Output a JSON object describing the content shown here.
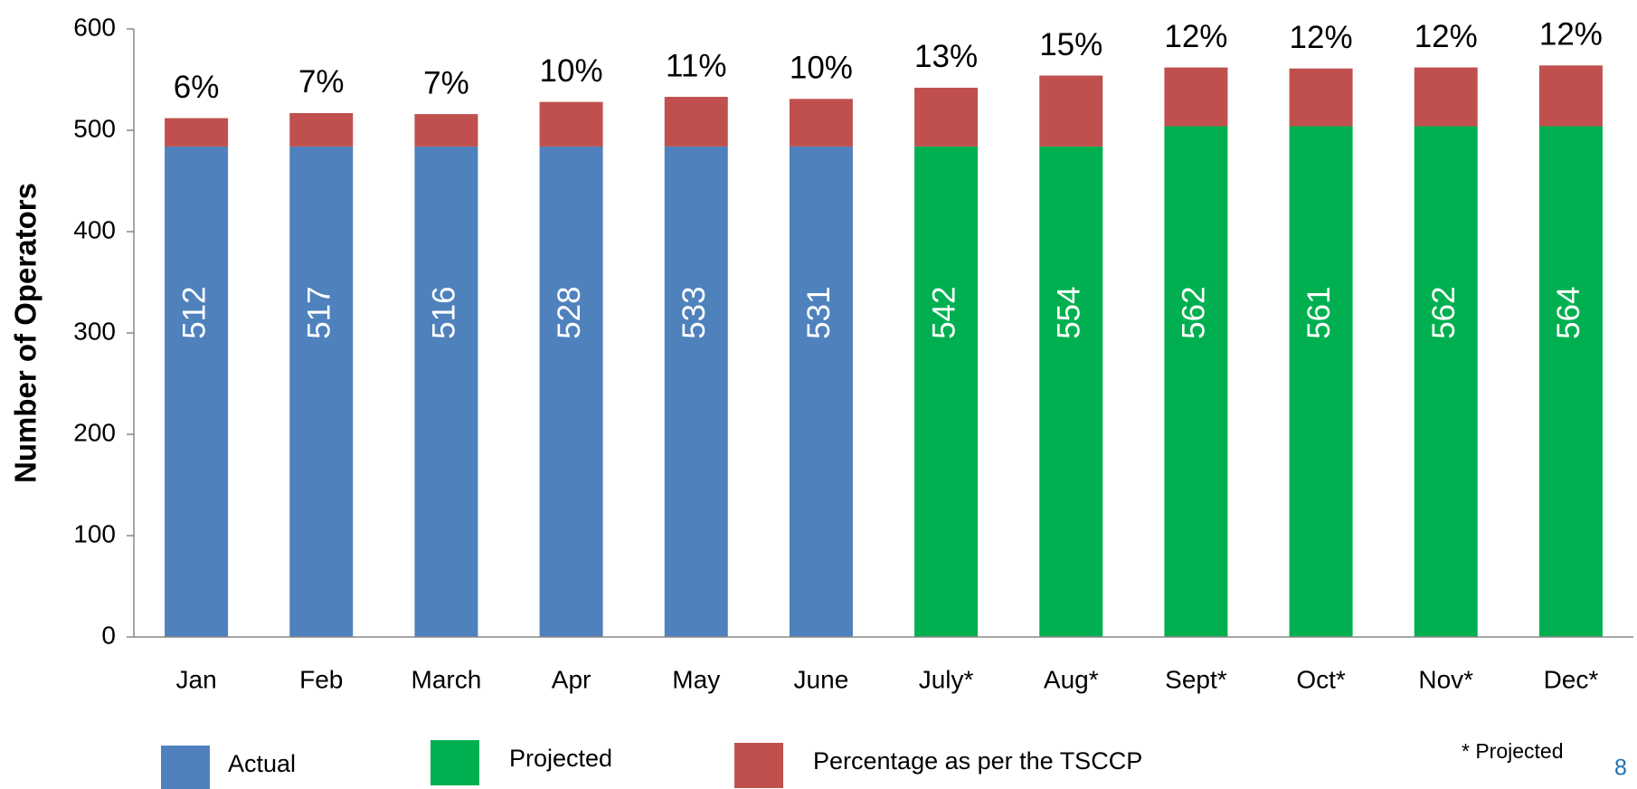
{
  "chart_data": {
    "type": "stacked_bar",
    "y_axis_label": "Number of Operators",
    "categories": [
      "Jan",
      "Feb",
      "March",
      "Apr",
      "May",
      "June",
      "July*",
      "Aug*",
      "Sept*",
      "Oct*",
      "Nov*",
      "Dec*"
    ],
    "series": [
      {
        "name": "Actual",
        "color": "#4f81bd",
        "values": [
          484,
          484,
          484,
          484,
          484,
          484,
          null,
          null,
          null,
          null,
          null,
          null
        ]
      },
      {
        "name": "Projected",
        "color": "#00b050",
        "values": [
          null,
          null,
          null,
          null,
          null,
          null,
          484,
          484,
          504,
          504,
          504,
          504
        ]
      },
      {
        "name": "Percentage as per the TSCCP",
        "color": "#c0504d",
        "values": [
          28,
          33,
          32,
          44,
          49,
          47,
          58,
          70,
          58,
          57,
          58,
          60
        ]
      }
    ],
    "totals": [
      512,
      517,
      516,
      528,
      533,
      531,
      542,
      554,
      562,
      561,
      562,
      564
    ],
    "percentages": [
      6,
      7,
      7,
      10,
      11,
      10,
      13,
      15,
      12,
      12,
      12,
      12
    ],
    "percentage_labels": [
      "6%",
      "7%",
      "7%",
      "10%",
      "11%",
      "10%",
      "13%",
      "15%",
      "12%",
      "12%",
      "12%",
      "12%"
    ],
    "ylim": [
      0,
      600
    ],
    "yticks": [
      0,
      100,
      200,
      300,
      400,
      500,
      600
    ],
    "grid": false,
    "note": "* Projected",
    "page_number": "8"
  }
}
